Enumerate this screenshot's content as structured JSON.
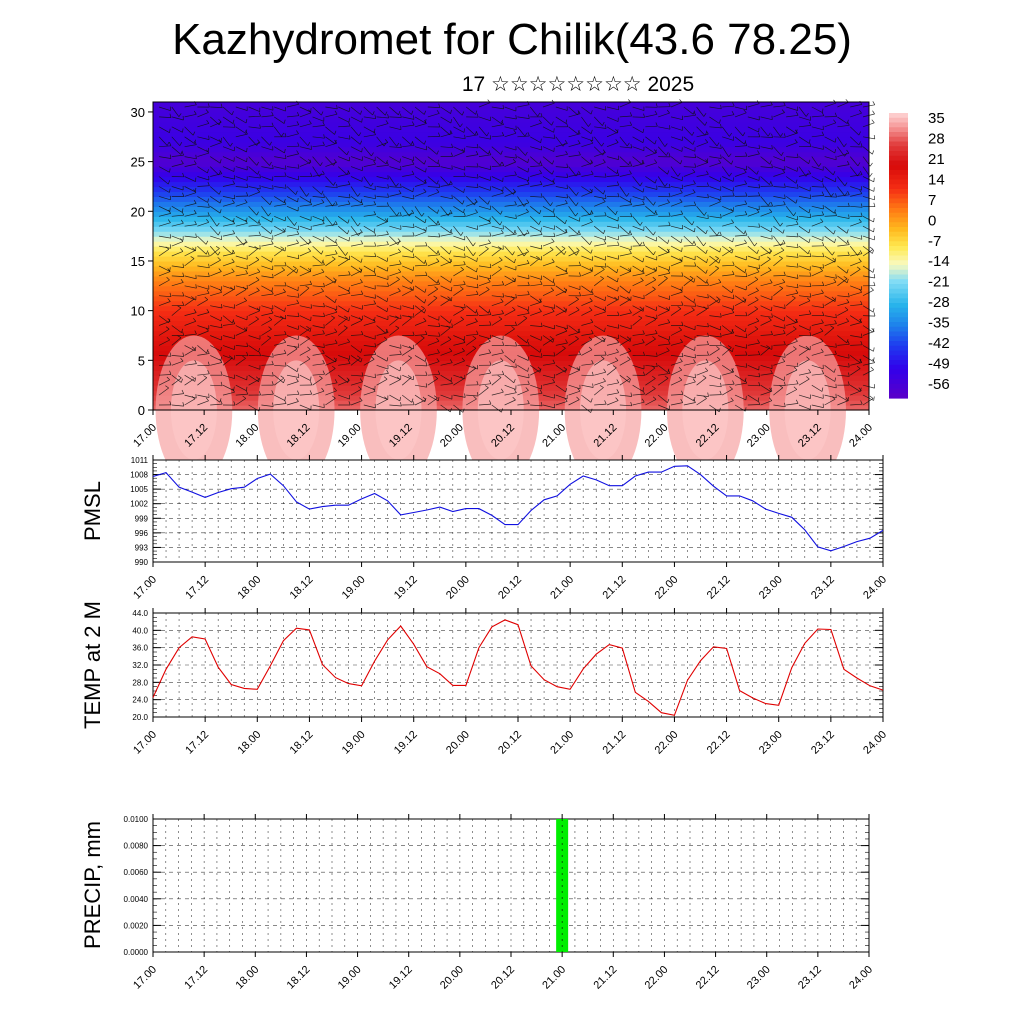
{
  "page": {
    "title": "Kazhydromet for Chilik(43.6 78.25)",
    "subtitle": "17 ☆☆☆☆☆☆☆☆ 2025"
  },
  "colors": {
    "pmsl_line": "#1010e0",
    "temp_line": "#e00000",
    "precip_bar": "#00ee00",
    "grid": "#000000"
  },
  "chart_data": [
    {
      "type": "heatmap",
      "title": "",
      "xlabel": "",
      "ylabel": "",
      "x_tick_labels": [
        "17.00",
        "17.12",
        "18.00",
        "18.12",
        "19.00",
        "19.12",
        "20.00",
        "20.12",
        "21.00",
        "21.12",
        "22.00",
        "22.12",
        "23.00",
        "23.12",
        "24.00"
      ],
      "y_ticks": [
        0,
        5,
        10,
        15,
        20,
        25,
        30
      ],
      "ylim": [
        0,
        31
      ],
      "colorbar_labels": [
        "35",
        "28",
        "21",
        "14",
        "7",
        "0",
        "-7",
        "-14",
        "-21",
        "-28",
        "-35",
        "-42",
        "-49",
        "-56"
      ],
      "colorbar_range": [
        -60,
        38
      ],
      "overlay": "wind barbs",
      "profile": [
        {
          "level": 0,
          "value": 30
        },
        {
          "level": 3,
          "value": 24
        },
        {
          "level": 7,
          "value": 18
        },
        {
          "level": 10,
          "value": 12
        },
        {
          "level": 13,
          "value": 4
        },
        {
          "level": 16,
          "value": -8
        },
        {
          "level": 18,
          "value": -20
        },
        {
          "level": 20,
          "value": -32
        },
        {
          "level": 22.5,
          "value": -45
        },
        {
          "level": 25,
          "value": -58
        },
        {
          "level": 27,
          "value": -52
        },
        {
          "level": 31,
          "value": -55
        }
      ]
    },
    {
      "type": "line",
      "ylabel": "PMSL",
      "xlabel": "",
      "x_tick_labels": [
        "17.00",
        "17.12",
        "18.00",
        "18.12",
        "19.00",
        "19.12",
        "20.00",
        "20.12",
        "21.00",
        "21.12",
        "22.00",
        "22.12",
        "23.00",
        "23.12",
        "24.00"
      ],
      "y_tick_labels": [
        "1011",
        "1008",
        "1005",
        "1002",
        "999",
        "996",
        "993",
        "990"
      ],
      "ylim": [
        990,
        1011
      ],
      "grid": true,
      "series": [
        {
          "values": [
            1007.6,
            1008.4,
            1005.4,
            1004.4,
            1003.3,
            1004.3,
            1005.1,
            1005.4,
            1007.2,
            1008.1,
            1005.7,
            1002.4,
            1000.9,
            1001.4,
            1001.7,
            1001.7,
            1003.0,
            1004.1,
            1002.6,
            999.7,
            1000.2,
            1000.7,
            1001.3,
            1000.4,
            1001.0,
            1001.0,
            999.6,
            997.7,
            997.7,
            1000.6,
            1002.8,
            1003.6,
            1006.0,
            1007.7,
            1006.9,
            1005.7,
            1005.7,
            1007.7,
            1008.5,
            1008.5,
            1009.7,
            1009.8,
            1008.0,
            1005.6,
            1003.6,
            1003.6,
            1002.6,
            1000.9,
            1000.0,
            999.2,
            996.6,
            993.1,
            992.3,
            993.2,
            994.2,
            994.9,
            996.5
          ]
        }
      ]
    },
    {
      "type": "line",
      "ylabel": "TEMP at 2 M",
      "xlabel": "",
      "x_tick_labels": [
        "17.00",
        "17.12",
        "18.00",
        "18.12",
        "19.00",
        "19.12",
        "20.00",
        "20.12",
        "21.00",
        "21.12",
        "22.00",
        "22.12",
        "23.00",
        "23.12",
        "24.00"
      ],
      "y_tick_labels": [
        "44.0",
        "40.0",
        "36.0",
        "32.0",
        "28.0",
        "24.0",
        "20.0"
      ],
      "ylim": [
        20,
        44
      ],
      "grid": true,
      "series": [
        {
          "values": [
            24.5,
            31.0,
            36.0,
            38.5,
            38.0,
            31.5,
            27.5,
            26.6,
            26.4,
            31.8,
            37.6,
            40.5,
            40.1,
            32.1,
            29.1,
            27.7,
            27.2,
            32.9,
            37.8,
            41.0,
            36.8,
            31.6,
            30.0,
            27.3,
            27.3,
            36.0,
            40.8,
            42.4,
            41.3,
            31.8,
            28.6,
            27.0,
            26.4,
            31.1,
            34.5,
            36.7,
            35.9,
            25.7,
            23.6,
            21.0,
            20.4,
            28.5,
            33.0,
            36.2,
            35.8,
            26.1,
            24.4,
            23.1,
            22.7,
            31.4,
            37.0,
            40.3,
            40.2,
            31.0,
            29.0,
            27.2,
            26.2
          ]
        }
      ]
    },
    {
      "type": "bar",
      "ylabel": "PRECIP, mm",
      "xlabel": "",
      "x_tick_labels": [
        "17.00",
        "17.12",
        "18.00",
        "18.12",
        "19.00",
        "19.12",
        "20.00",
        "20.12",
        "21.00",
        "21.12",
        "22.00",
        "22.12",
        "23.00",
        "23.12",
        "24.00"
      ],
      "y_tick_labels": [
        "0.0100",
        "0.0080",
        "0.0060",
        "0.0040",
        "0.0020",
        "0.0000"
      ],
      "ylim": [
        0,
        0.01
      ],
      "grid": true,
      "series": [
        {
          "points": [
            {
              "x": "21.00",
              "value": 0.01
            }
          ]
        }
      ]
    }
  ]
}
